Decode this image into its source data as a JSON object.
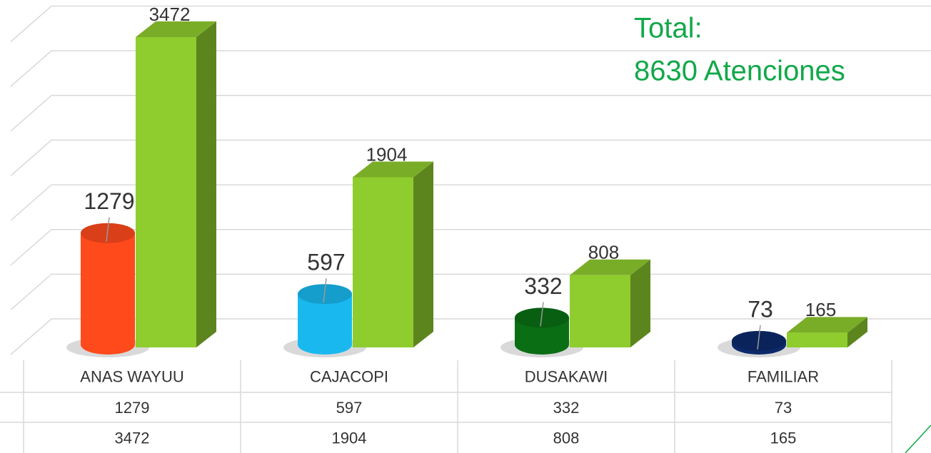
{
  "chart_data": {
    "type": "bar3d",
    "annotation": [
      "Total:",
      "8630 Atenciones"
    ],
    "categories": [
      "ANAS WAYUU",
      "CAJACOPI",
      "DUSAKAWI",
      "FAMILIAR"
    ],
    "series": [
      {
        "shape": "cylinder",
        "colors": [
          "#ff4a1c",
          "#19b9f0",
          "#0a6e14",
          "#0c2a6b"
        ],
        "values": [
          1279,
          597,
          332,
          73
        ]
      },
      {
        "shape": "box",
        "color": "#8fcc2e",
        "values": [
          3472,
          1904,
          808,
          165
        ]
      }
    ],
    "ylim": [
      0,
      3500
    ],
    "yticks": [
      0,
      500,
      1000,
      1500,
      2000,
      2500,
      3000,
      3500
    ],
    "grid": true,
    "table": true
  }
}
